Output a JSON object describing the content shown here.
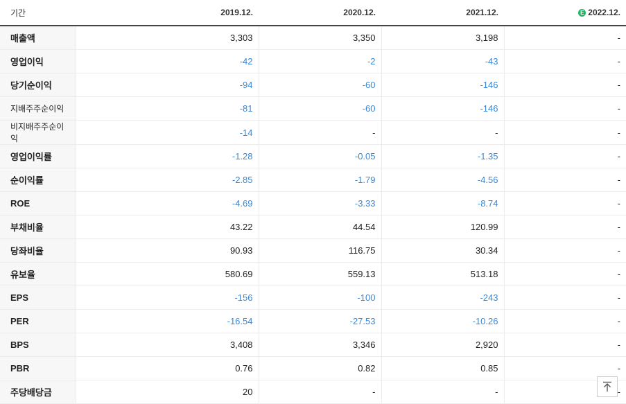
{
  "header": {
    "period_label": "기간",
    "columns": [
      "2019.12.",
      "2020.12.",
      "2021.12.",
      "2022.12."
    ],
    "estimate_badge": "E"
  },
  "rows": [
    {
      "label": "매출액",
      "values": [
        "3,303",
        "3,350",
        "3,198",
        "-"
      ]
    },
    {
      "label": "영업이익",
      "values": [
        "-42",
        "-2",
        "-43",
        "-"
      ]
    },
    {
      "label": "당기순이익",
      "values": [
        "-94",
        "-60",
        "-146",
        "-"
      ]
    },
    {
      "label": "지배주주순이익",
      "values": [
        "-81",
        "-60",
        "-146",
        "-"
      ]
    },
    {
      "label": "비지배주주순이익",
      "values": [
        "-14",
        "-",
        "-",
        "-"
      ]
    },
    {
      "label": "영업이익률",
      "values": [
        "-1.28",
        "-0.05",
        "-1.35",
        "-"
      ]
    },
    {
      "label": "순이익률",
      "values": [
        "-2.85",
        "-1.79",
        "-4.56",
        "-"
      ]
    },
    {
      "label": "ROE",
      "values": [
        "-4.69",
        "-3.33",
        "-8.74",
        "-"
      ]
    },
    {
      "label": "부채비율",
      "values": [
        "43.22",
        "44.54",
        "120.99",
        "-"
      ]
    },
    {
      "label": "당좌비율",
      "values": [
        "90.93",
        "116.75",
        "30.34",
        "-"
      ]
    },
    {
      "label": "유보율",
      "values": [
        "580.69",
        "559.13",
        "513.18",
        "-"
      ]
    },
    {
      "label": "EPS",
      "values": [
        "-156",
        "-100",
        "-243",
        "-"
      ]
    },
    {
      "label": "PER",
      "values": [
        "-16.54",
        "-27.53",
        "-10.26",
        "-"
      ]
    },
    {
      "label": "BPS",
      "values": [
        "3,408",
        "3,346",
        "2,920",
        "-"
      ]
    },
    {
      "label": "PBR",
      "values": [
        "0.76",
        "0.82",
        "0.85",
        "-"
      ]
    },
    {
      "label": "주당배당금",
      "values": [
        "20",
        "-",
        "-",
        "-"
      ]
    }
  ],
  "colors": {
    "negative": "#3a87d3",
    "estimate_badge": "#28b463"
  },
  "icons": {
    "scroll_top": "arrow-up-to-top-icon"
  }
}
